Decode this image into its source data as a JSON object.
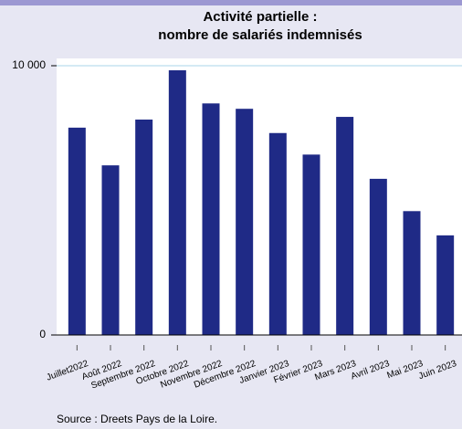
{
  "chart_data": {
    "type": "bar",
    "title": [
      "Activité partielle :",
      "nombre de salariés indemnisés"
    ],
    "categories": [
      "Juillet2022",
      "Août 2022",
      "Septembre 2022",
      "Octobre 2022",
      "Novembre 2022",
      "Décembre 2022",
      "Janvier 2023",
      "Février 2023",
      "Mars 2023",
      "Avril 2023",
      "Mai 2023",
      "Juin 2023"
    ],
    "values": [
      7700,
      6300,
      8000,
      9830,
      8600,
      8400,
      7500,
      6700,
      8100,
      5800,
      4600,
      3700
    ],
    "color": "#1f2a86",
    "ylim": [
      0,
      10000
    ],
    "yticks": [
      0,
      {
        "value": 10000,
        "label": "10 000"
      }
    ],
    "grid": true,
    "source": "Source : Dreets Pays de la Loire."
  }
}
